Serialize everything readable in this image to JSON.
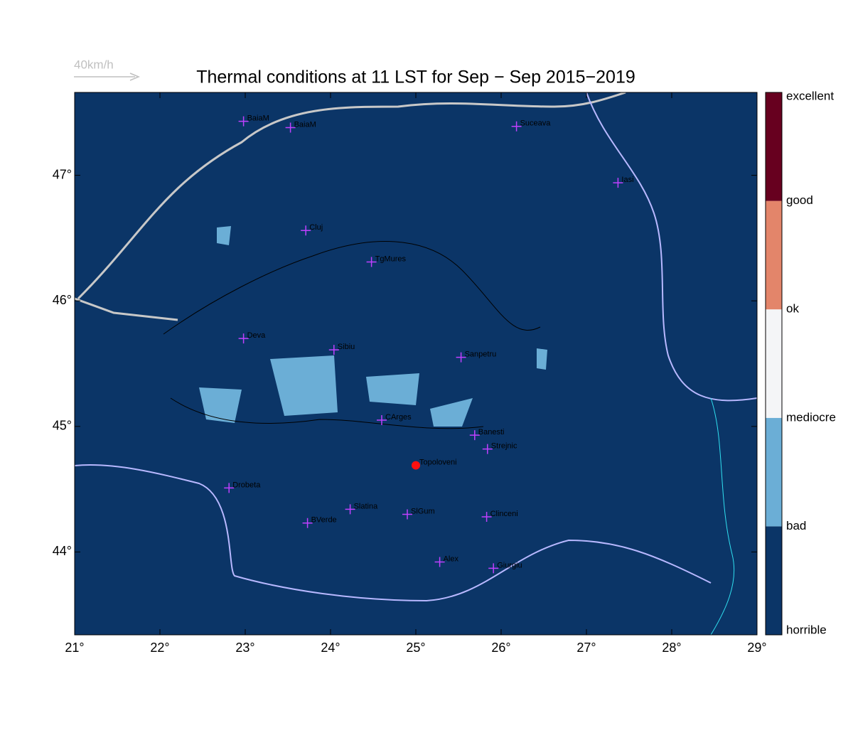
{
  "map": {
    "title": "Thermal conditions at 11 LST for Sep − Sep  2015−2019",
    "wind_scale": "40km/h",
    "xlim": [
      21,
      29
    ],
    "ylim": [
      43.34,
      47.66
    ],
    "xticks": [
      {
        "value": 21,
        "label": "21°"
      },
      {
        "value": 22,
        "label": "22°"
      },
      {
        "value": 23,
        "label": "23°"
      },
      {
        "value": 24,
        "label": "24°"
      },
      {
        "value": 25,
        "label": "25°"
      },
      {
        "value": 26,
        "label": "26°"
      },
      {
        "value": 27,
        "label": "27°"
      },
      {
        "value": 28,
        "label": "28°"
      },
      {
        "value": 29,
        "label": "29°"
      }
    ],
    "yticks": [
      {
        "value": 44,
        "label": "44°"
      },
      {
        "value": 45,
        "label": "45°"
      },
      {
        "value": 46,
        "label": "46°"
      },
      {
        "value": 47,
        "label": "47°"
      }
    ],
    "background": "#0b3567",
    "colorbar": {
      "levels": [
        "horrible",
        "bad",
        "mediocre",
        "ok",
        "good",
        "excellent"
      ],
      "colors": [
        "#0b3567",
        "#6baed6",
        "#f4f5f7",
        "#e3856a",
        "#67001f"
      ]
    },
    "cross_color": "#c040ff",
    "dot_color": "#ff1010",
    "places": [
      {
        "name": "BaiaM",
        "lon": 22.98,
        "lat": 47.43,
        "marker": "cross"
      },
      {
        "name": "BaiaM",
        "lon": 23.53,
        "lat": 47.38,
        "marker": "cross"
      },
      {
        "name": "Suceava",
        "lon": 26.18,
        "lat": 47.39,
        "marker": "cross"
      },
      {
        "name": "Iasi",
        "lon": 27.37,
        "lat": 46.94,
        "marker": "cross"
      },
      {
        "name": "Cluj",
        "lon": 23.71,
        "lat": 46.56,
        "marker": "cross"
      },
      {
        "name": "TgMures",
        "lon": 24.48,
        "lat": 46.31,
        "marker": "cross"
      },
      {
        "name": "Deva",
        "lon": 22.98,
        "lat": 45.7,
        "marker": "cross"
      },
      {
        "name": "Sibiu",
        "lon": 24.04,
        "lat": 45.61,
        "marker": "cross"
      },
      {
        "name": "Sanpetru",
        "lon": 25.53,
        "lat": 45.55,
        "marker": "cross"
      },
      {
        "name": "CArges",
        "lon": 24.6,
        "lat": 45.05,
        "marker": "cross"
      },
      {
        "name": "Banesti",
        "lon": 25.69,
        "lat": 44.93,
        "marker": "cross"
      },
      {
        "name": "Strejnic",
        "lon": 25.84,
        "lat": 44.82,
        "marker": "cross"
      },
      {
        "name": "Topoloveni",
        "lon": 25.0,
        "lat": 44.69,
        "marker": "dot"
      },
      {
        "name": "Drobeta",
        "lon": 22.81,
        "lat": 44.51,
        "marker": "cross"
      },
      {
        "name": "Slatina",
        "lon": 24.23,
        "lat": 44.34,
        "marker": "cross"
      },
      {
        "name": "SlGum",
        "lon": 24.9,
        "lat": 44.3,
        "marker": "cross"
      },
      {
        "name": "BVerde",
        "lon": 23.73,
        "lat": 44.23,
        "marker": "cross"
      },
      {
        "name": "Clinceni",
        "lon": 25.83,
        "lat": 44.28,
        "marker": "cross"
      },
      {
        "name": "Alex",
        "lon": 25.28,
        "lat": 43.92,
        "marker": "cross"
      },
      {
        "name": "Giurgiu",
        "lon": 25.91,
        "lat": 43.87,
        "marker": "cross"
      }
    ]
  }
}
